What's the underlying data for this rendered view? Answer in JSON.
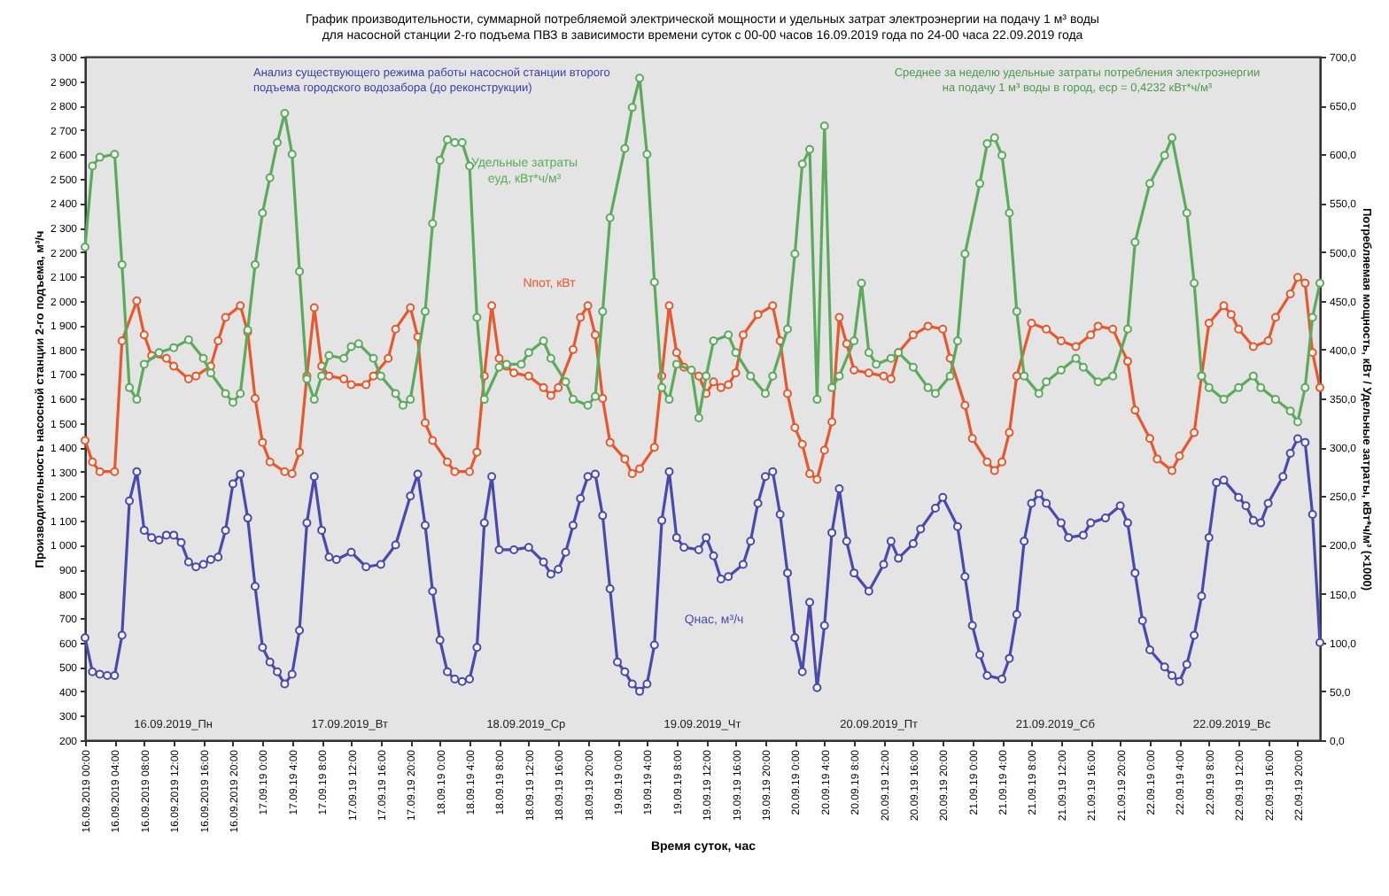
{
  "chart_data": {
    "type": "line",
    "title": "График производительности, суммарной потребляемой электрической мощности и удельных затрат электроэнергии на подачу 1 м³ воды для насосной станции 2-го подъема ПВЗ в зависимости времени суток с 00-00 часов 16.09.2019 года по 24-00 часа 22.09.2019 года",
    "xlabel": "Время суток, час",
    "ylabel": "Производительность насосной станции 2-го подъема, м³/ч",
    "y2label": "Потребляемая мощность, кВт / Удельные затраты, кВт*ч/м³ (×1000)",
    "annotations": [
      "Анализ существующего режима работы насосной станции второго подъема городского водозабора (до реконструкции)",
      "Среднее за неделю удельные затраты потребления электроэнергии на подачу 1 м³ воды в город, eср = 0,4232 кВт*ч/м³",
      "16.09.2019_Пн",
      "17.09.2019_Вт",
      "18.09.2019_Ср",
      "19.09.2019_Чт",
      "20.09.2019_Пт",
      "21.09.2019_Сб",
      "22.09.2019_Вс"
    ],
    "xlim": [
      "2019-09-16T00:00",
      "2019-09-22T23:00"
    ],
    "xticks": [
      {
        "value": "2019-09-16T00:00",
        "label": "16.09.2019 00:00"
      },
      {
        "value": "2019-09-16T04:00",
        "label": "16.09.2019 04:00"
      },
      {
        "value": "2019-09-16T08:00",
        "label": "16.09.2019 08:00"
      },
      {
        "value": "2019-09-16T12:00",
        "label": "16.09.2019 12:00"
      },
      {
        "value": "2019-09-16T16:00",
        "label": "16.09.2019 16:00"
      },
      {
        "value": "2019-09-16T20:00",
        "label": "16.09.2019 20:00"
      },
      {
        "value": "2019-09-17T00:00",
        "label": "17.09.19 0:00"
      },
      {
        "value": "2019-09-17T04:00",
        "label": "17.09.19 4:00"
      },
      {
        "value": "2019-09-17T08:00",
        "label": "17.09.19 8:00"
      },
      {
        "value": "2019-09-17T12:00",
        "label": "17.09.19 12:00"
      },
      {
        "value": "2019-09-17T16:00",
        "label": "17.09.19 16:00"
      },
      {
        "value": "2019-09-17T20:00",
        "label": "17.09.19 20:00"
      },
      {
        "value": "2019-09-18T00:00",
        "label": "18.09.19 0:00"
      },
      {
        "value": "2019-09-18T04:00",
        "label": "18.09.19 4:00"
      },
      {
        "value": "2019-09-18T08:00",
        "label": "18.09.19 8:00"
      },
      {
        "value": "2019-09-18T12:00",
        "label": "18.09.19 12:00"
      },
      {
        "value": "2019-09-18T16:00",
        "label": "18.09.19 16:00"
      },
      {
        "value": "2019-09-18T20:00",
        "label": "18.09.19 20:00"
      },
      {
        "value": "2019-09-19T00:00",
        "label": "19.09.19 0:00"
      },
      {
        "value": "2019-09-19T04:00",
        "label": "19.09.19 4:00"
      },
      {
        "value": "2019-09-19T08:00",
        "label": "19.09.19 8:00"
      },
      {
        "value": "2019-09-19T12:00",
        "label": "19.09.19 12:00"
      },
      {
        "value": "2019-09-19T16:00",
        "label": "19.09.19 16:00"
      },
      {
        "value": "2019-09-19T20:00",
        "label": "19.09.19 20:00"
      },
      {
        "value": "2019-09-20T00:00",
        "label": "20.09.19 0:00"
      },
      {
        "value": "2019-09-20T04:00",
        "label": "20.09.19 4:00"
      },
      {
        "value": "2019-09-20T08:00",
        "label": "20.09.19 8:00"
      },
      {
        "value": "2019-09-20T12:00",
        "label": "20.09.19 12:00"
      },
      {
        "value": "2019-09-20T16:00",
        "label": "20.09.19 16:00"
      },
      {
        "value": "2019-09-20T20:00",
        "label": "20.09.19 20:00"
      },
      {
        "value": "2019-09-21T00:00",
        "label": "21.09.19 0:00"
      },
      {
        "value": "2019-09-21T04:00",
        "label": "21.09.19 4:00"
      },
      {
        "value": "2019-09-21T08:00",
        "label": "21.09.19 8:00"
      },
      {
        "value": "2019-09-21T12:00",
        "label": "21.09.19 12:00"
      },
      {
        "value": "2019-09-21T16:00",
        "label": "21.09.19 16:00"
      },
      {
        "value": "2019-09-21T20:00",
        "label": "21.09.19 20:00"
      },
      {
        "value": "2019-09-22T00:00",
        "label": "22.09.19 0:00"
      },
      {
        "value": "2019-09-22T04:00",
        "label": "22.09.19 4:00"
      },
      {
        "value": "2019-09-22T08:00",
        "label": "22.09.19 8:00"
      },
      {
        "value": "2019-09-22T12:00",
        "label": "22.09.19 12:00"
      },
      {
        "value": "2019-09-22T16:00",
        "label": "22.09.19 16:00"
      },
      {
        "value": "2019-09-22T20:00",
        "label": "22.09.19 20:00"
      }
    ],
    "ylim": [
      200,
      3000
    ],
    "yticks": [
      200,
      300,
      400,
      500,
      600,
      700,
      800,
      900,
      {
        "value": 1000,
        "label": "1 000"
      },
      {
        "value": 1100,
        "label": "1 100"
      },
      {
        "value": 1200,
        "label": "1 200"
      },
      {
        "value": 1300,
        "label": "1 300"
      },
      {
        "value": 1400,
        "label": "1 400"
      },
      {
        "value": 1500,
        "label": "1 500"
      },
      {
        "value": 1600,
        "label": "1 600"
      },
      {
        "value": 1700,
        "label": "1 700"
      },
      {
        "value": 1800,
        "label": "1 800"
      },
      {
        "value": 1900,
        "label": "1 900"
      },
      {
        "value": 2000,
        "label": "2 000"
      },
      {
        "value": 2100,
        "label": "2 100"
      },
      {
        "value": 2200,
        "label": "2 200"
      },
      {
        "value": 2300,
        "label": "2 300"
      },
      {
        "value": 2400,
        "label": "2 400"
      },
      {
        "value": 2500,
        "label": "2 500"
      },
      {
        "value": 2600,
        "label": "2 600"
      },
      {
        "value": 2700,
        "label": "2 700"
      },
      {
        "value": 2800,
        "label": "2 800"
      },
      {
        "value": 2900,
        "label": "2 900"
      },
      {
        "value": 3000,
        "label": "3 000"
      }
    ],
    "y2lim": [
      0,
      700
    ],
    "y2ticks": [
      {
        "value": 0,
        "label": "0,0"
      },
      {
        "value": 50,
        "label": "50,0"
      },
      {
        "value": 100,
        "label": "100,0"
      },
      {
        "value": 150,
        "label": "150,0"
      },
      {
        "value": 200,
        "label": "200,0"
      },
      {
        "value": 250,
        "label": "250,0"
      },
      {
        "value": 300,
        "label": "300,0"
      },
      {
        "value": 350,
        "label": "350,0"
      },
      {
        "value": 400,
        "label": "400,0"
      },
      {
        "value": 450,
        "label": "450,0"
      },
      {
        "value": 500,
        "label": "500,0"
      },
      {
        "value": 550,
        "label": "550,0"
      },
      {
        "value": 600,
        "label": "600,0"
      },
      {
        "value": 650,
        "label": "650,0"
      },
      {
        "value": 700,
        "label": "700,0"
      }
    ],
    "marker": "circle",
    "line_style": "solid",
    "series": [
      {
        "name": "Qнас, м³/ч",
        "color": "#4a4aae",
        "x": [
          "2019-09-16T00:00",
          "2019-09-16T01:00",
          "2019-09-16T02:00",
          "2019-09-16T03:00",
          "2019-09-16T04:00",
          "2019-09-16T05:00",
          "2019-09-16T06:00",
          "2019-09-16T07:00",
          "2019-09-16T08:00",
          "2019-09-16T09:00",
          "2019-09-16T10:00",
          "2019-09-16T11:00",
          "2019-09-16T12:00",
          "2019-09-16T13:00",
          "2019-09-16T14:00",
          "2019-09-16T15:00",
          "2019-09-16T16:00",
          "2019-09-16T17:00",
          "2019-09-16T18:00",
          "2019-09-16T19:00",
          "2019-09-16T20:00",
          "2019-09-16T21:00",
          "2019-09-16T22:00",
          "2019-09-16T23:00",
          "2019-09-17T00:00",
          "2019-09-17T01:00",
          "2019-09-17T02:00",
          "2019-09-17T03:00",
          "2019-09-17T04:00",
          "2019-09-17T05:00",
          "2019-09-17T06:00",
          "2019-09-17T07:00",
          "2019-09-17T08:00",
          "2019-09-17T09:00",
          "2019-09-17T10:00",
          "2019-09-17T12:00",
          "2019-09-17T14:00",
          "2019-09-17T16:00",
          "2019-09-17T18:00",
          "2019-09-17T20:00",
          "2019-09-17T21:00",
          "2019-09-17T22:00",
          "2019-09-17T23:00",
          "2019-09-18T00:00",
          "2019-09-18T01:00",
          "2019-09-18T02:00",
          "2019-09-18T03:00",
          "2019-09-18T04:00",
          "2019-09-18T05:00",
          "2019-09-18T06:00",
          "2019-09-18T07:00",
          "2019-09-18T08:00",
          "2019-09-18T10:00",
          "2019-09-18T12:00",
          "2019-09-18T14:00",
          "2019-09-18T15:00",
          "2019-09-18T16:00",
          "2019-09-18T17:00",
          "2019-09-18T18:00",
          "2019-09-18T19:00",
          "2019-09-18T20:00",
          "2019-09-18T21:00",
          "2019-09-18T22:00",
          "2019-09-18T23:00",
          "2019-09-19T00:00",
          "2019-09-19T01:00",
          "2019-09-19T02:00",
          "2019-09-19T03:00",
          "2019-09-19T04:00",
          "2019-09-19T05:00",
          "2019-09-19T06:00",
          "2019-09-19T07:00",
          "2019-09-19T08:00",
          "2019-09-19T09:00",
          "2019-09-19T11:00",
          "2019-09-19T12:00",
          "2019-09-19T13:00",
          "2019-09-19T14:00",
          "2019-09-19T15:00",
          "2019-09-19T17:00",
          "2019-09-19T18:00",
          "2019-09-19T19:00",
          "2019-09-19T20:00",
          "2019-09-19T21:00",
          "2019-09-19T22:00",
          "2019-09-19T23:00",
          "2019-09-20T00:00",
          "2019-09-20T01:00",
          "2019-09-20T02:00",
          "2019-09-20T03:00",
          "2019-09-20T04:00",
          "2019-09-20T05:00",
          "2019-09-20T06:00",
          "2019-09-20T07:00",
          "2019-09-20T08:00",
          "2019-09-20T10:00",
          "2019-09-20T12:00",
          "2019-09-20T13:00",
          "2019-09-20T14:00",
          "2019-09-20T16:00",
          "2019-09-20T17:00",
          "2019-09-20T19:00",
          "2019-09-20T20:00",
          "2019-09-20T22:00",
          "2019-09-20T23:00",
          "2019-09-21T00:00",
          "2019-09-21T01:00",
          "2019-09-21T02:00",
          "2019-09-21T04:00",
          "2019-09-21T05:00",
          "2019-09-21T06:00",
          "2019-09-21T07:00",
          "2019-09-21T08:00",
          "2019-09-21T09:00",
          "2019-09-21T10:00",
          "2019-09-21T12:00",
          "2019-09-21T13:00",
          "2019-09-21T15:00",
          "2019-09-21T16:00",
          "2019-09-21T18:00",
          "2019-09-21T20:00",
          "2019-09-21T21:00",
          "2019-09-21T22:00",
          "2019-09-21T23:00",
          "2019-09-22T00:00",
          "2019-09-22T02:00",
          "2019-09-22T03:00",
          "2019-09-22T04:00",
          "2019-09-22T05:00",
          "2019-09-22T06:00",
          "2019-09-22T07:00",
          "2019-09-22T08:00",
          "2019-09-22T09:00",
          "2019-09-22T10:00",
          "2019-09-22T12:00",
          "2019-09-22T13:00",
          "2019-09-22T14:00",
          "2019-09-22T15:00",
          "2019-09-22T16:00",
          "2019-09-22T18:00",
          "2019-09-22T19:00",
          "2019-09-22T20:00",
          "2019-09-22T21:00",
          "2019-09-22T22:00",
          "2019-09-22T23:00"
        ],
        "values": [
          620,
          480,
          470,
          465,
          465,
          630,
          1180,
          1300,
          1060,
          1030,
          1020,
          1040,
          1040,
          1010,
          930,
          910,
          920,
          940,
          950,
          1060,
          1250,
          1290,
          1110,
          830,
          580,
          520,
          480,
          430,
          470,
          650,
          1090,
          1280,
          1060,
          950,
          940,
          970,
          910,
          920,
          1000,
          1200,
          1290,
          1080,
          810,
          610,
          480,
          450,
          440,
          450,
          580,
          1090,
          1280,
          980,
          980,
          990,
          930,
          880,
          900,
          970,
          1080,
          1190,
          1280,
          1290,
          1120,
          820,
          520,
          480,
          430,
          400,
          430,
          590,
          1100,
          1300,
          1030,
          990,
          980,
          1030,
          955,
          860,
          870,
          920,
          1015,
          1170,
          1280,
          1300,
          1125,
          885,
          620,
          480,
          765,
          415,
          670,
          1050,
          1230,
          1015,
          885,
          810,
          920,
          1015,
          945,
          1005,
          1065,
          1150,
          1195,
          1075,
          870,
          670,
          550,
          465,
          450,
          535,
          715,
          1015,
          1170,
          1210,
          1170,
          1090,
          1030,
          1040,
          1090,
          1110,
          1160,
          1090,
          885,
          690,
          570,
          500,
          465,
          440,
          510,
          630,
          790,
          1030,
          1255,
          1265,
          1195,
          1160,
          1100,
          1090,
          1170,
          1280,
          1375,
          1435,
          1420,
          1125,
          600
        ]
      },
      {
        "name": "Nпот, кВт",
        "color": "#e8582c",
        "axis": "y2",
        "x": [
          "2019-09-16T00:00",
          "2019-09-16T01:00",
          "2019-09-16T02:00",
          "2019-09-16T04:00",
          "2019-09-16T05:00",
          "2019-09-16T07:00",
          "2019-09-16T08:00",
          "2019-09-16T09:00",
          "2019-09-16T11:00",
          "2019-09-16T12:00",
          "2019-09-16T14:00",
          "2019-09-16T15:00",
          "2019-09-16T17:00",
          "2019-09-16T18:00",
          "2019-09-16T19:00",
          "2019-09-16T21:00",
          "2019-09-16T22:00",
          "2019-09-16T23:00",
          "2019-09-17T00:00",
          "2019-09-17T01:00",
          "2019-09-17T03:00",
          "2019-09-17T04:00",
          "2019-09-17T05:00",
          "2019-09-17T06:00",
          "2019-09-17T07:00",
          "2019-09-17T08:00",
          "2019-09-17T09:00",
          "2019-09-17T11:00",
          "2019-09-17T12:00",
          "2019-09-17T14:00",
          "2019-09-17T15:00",
          "2019-09-17T17:00",
          "2019-09-17T18:00",
          "2019-09-17T20:00",
          "2019-09-17T21:00",
          "2019-09-17T22:00",
          "2019-09-17T23:00",
          "2019-09-18T01:00",
          "2019-09-18T02:00",
          "2019-09-18T04:00",
          "2019-09-18T05:00",
          "2019-09-18T06:00",
          "2019-09-18T07:00",
          "2019-09-18T08:00",
          "2019-09-18T09:00",
          "2019-09-18T10:00",
          "2019-09-18T12:00",
          "2019-09-18T14:00",
          "2019-09-18T15:00",
          "2019-09-18T16:00",
          "2019-09-18T18:00",
          "2019-09-18T19:00",
          "2019-09-18T20:00",
          "2019-09-18T21:00",
          "2019-09-18T22:00",
          "2019-09-18T23:00",
          "2019-09-19T01:00",
          "2019-09-19T02:00",
          "2019-09-19T03:00",
          "2019-09-19T05:00",
          "2019-09-19T06:00",
          "2019-09-19T07:00",
          "2019-09-19T08:00",
          "2019-09-19T09:00",
          "2019-09-19T11:00",
          "2019-09-19T12:00",
          "2019-09-19T13:00",
          "2019-09-19T14:00",
          "2019-09-19T15:00",
          "2019-09-19T16:00",
          "2019-09-19T17:00",
          "2019-09-19T19:00",
          "2019-09-19T21:00",
          "2019-09-19T22:00",
          "2019-09-19T23:00",
          "2019-09-20T00:00",
          "2019-09-20T01:00",
          "2019-09-20T02:00",
          "2019-09-20T03:00",
          "2019-09-20T04:00",
          "2019-09-20T05:00",
          "2019-09-20T06:00",
          "2019-09-20T07:00",
          "2019-09-20T08:00",
          "2019-09-20T10:00",
          "2019-09-20T12:00",
          "2019-09-20T13:00",
          "2019-09-20T14:00",
          "2019-09-20T16:00",
          "2019-09-20T18:00",
          "2019-09-20T20:00",
          "2019-09-20T21:00",
          "2019-09-20T23:00",
          "2019-09-21T00:00",
          "2019-09-21T02:00",
          "2019-09-21T03:00",
          "2019-09-21T04:00",
          "2019-09-21T05:00",
          "2019-09-21T06:00",
          "2019-09-21T08:00",
          "2019-09-21T10:00",
          "2019-09-21T12:00",
          "2019-09-21T14:00",
          "2019-09-21T16:00",
          "2019-09-21T17:00",
          "2019-09-21T19:00",
          "2019-09-21T21:00",
          "2019-09-21T22:00",
          "2019-09-22T00:00",
          "2019-09-22T01:00",
          "2019-09-22T03:00",
          "2019-09-22T04:00",
          "2019-09-22T06:00",
          "2019-09-22T07:00",
          "2019-09-22T08:00",
          "2019-09-22T10:00",
          "2019-09-22T11:00",
          "2019-09-22T12:00",
          "2019-09-22T14:00",
          "2019-09-22T16:00",
          "2019-09-22T17:00",
          "2019-09-22T19:00",
          "2019-09-22T20:00",
          "2019-09-22T21:00",
          "2019-09-22T22:00",
          "2019-09-22T23:00"
        ],
        "values": [
          307,
          285,
          275,
          275,
          409,
          450,
          415,
          394,
          391,
          383,
          370,
          373,
          383,
          409,
          433,
          445,
          418,
          350,
          305,
          285,
          275,
          273,
          295,
          373,
          443,
          383,
          373,
          370,
          364,
          364,
          373,
          391,
          421,
          443,
          413,
          325,
          307,
          285,
          275,
          275,
          295,
          373,
          445,
          391,
          383,
          376,
          373,
          361,
          353,
          361,
          400,
          433,
          445,
          415,
          350,
          305,
          288,
          273,
          278,
          300,
          373,
          445,
          397,
          382,
          373,
          355,
          367,
          361,
          364,
          376,
          415,
          436,
          445,
          409,
          355,
          320,
          303,
          273,
          267,
          297,
          326,
          433,
          406,
          379,
          376,
          373,
          370,
          397,
          415,
          424,
          421,
          391,
          343,
          309,
          285,
          276,
          285,
          315,
          373,
          427,
          421,
          409,
          403,
          415,
          424,
          421,
          388,
          338,
          309,
          288,
          276,
          291,
          315,
          373,
          427,
          445,
          436,
          421,
          403,
          409,
          433,
          457,
          474,
          468,
          397,
          361
        ]
      },
      {
        "name": "Удельные затраты eуд, кВт*ч/м³",
        "color": "#5cab5c",
        "axis": "y2",
        "x": [
          "2019-09-16T00:00",
          "2019-09-16T01:00",
          "2019-09-16T02:00",
          "2019-09-16T04:00",
          "2019-09-16T05:00",
          "2019-09-16T06:00",
          "2019-09-16T07:00",
          "2019-09-16T08:00",
          "2019-09-16T10:00",
          "2019-09-16T12:00",
          "2019-09-16T14:00",
          "2019-09-16T16:00",
          "2019-09-16T17:00",
          "2019-09-16T19:00",
          "2019-09-16T20:00",
          "2019-09-16T21:00",
          "2019-09-16T22:00",
          "2019-09-16T23:00",
          "2019-09-17T00:00",
          "2019-09-17T01:00",
          "2019-09-17T02:00",
          "2019-09-17T03:00",
          "2019-09-17T04:00",
          "2019-09-17T05:00",
          "2019-09-17T06:00",
          "2019-09-17T07:00",
          "2019-09-17T08:00",
          "2019-09-17T09:00",
          "2019-09-17T11:00",
          "2019-09-17T12:00",
          "2019-09-17T13:00",
          "2019-09-17T15:00",
          "2019-09-17T16:00",
          "2019-09-17T18:00",
          "2019-09-17T19:00",
          "2019-09-17T20:00",
          "2019-09-17T22:00",
          "2019-09-17T23:00",
          "2019-09-18T00:00",
          "2019-09-18T01:00",
          "2019-09-18T02:00",
          "2019-09-18T03:00",
          "2019-09-18T04:00",
          "2019-09-18T05:00",
          "2019-09-18T06:00",
          "2019-09-18T08:00",
          "2019-09-18T09:00",
          "2019-09-18T11:00",
          "2019-09-18T12:00",
          "2019-09-18T14:00",
          "2019-09-18T15:00",
          "2019-09-18T17:00",
          "2019-09-18T18:00",
          "2019-09-18T20:00",
          "2019-09-18T21:00",
          "2019-09-18T22:00",
          "2019-09-18T23:00",
          "2019-09-19T01:00",
          "2019-09-19T02:00",
          "2019-09-19T03:00",
          "2019-09-19T04:00",
          "2019-09-19T05:00",
          "2019-09-19T06:00",
          "2019-09-19T07:00",
          "2019-09-19T08:00",
          "2019-09-19T10:00",
          "2019-09-19T11:00",
          "2019-09-19T12:00",
          "2019-09-19T13:00",
          "2019-09-19T15:00",
          "2019-09-19T16:00",
          "2019-09-19T18:00",
          "2019-09-19T20:00",
          "2019-09-19T21:00",
          "2019-09-19T23:00",
          "2019-09-20T00:00",
          "2019-09-20T01:00",
          "2019-09-20T02:00",
          "2019-09-20T03:00",
          "2019-09-20T04:00",
          "2019-09-20T05:00",
          "2019-09-20T06:00",
          "2019-09-20T08:00",
          "2019-09-20T09:00",
          "2019-09-20T10:00",
          "2019-09-20T11:00",
          "2019-09-20T13:00",
          "2019-09-20T14:00",
          "2019-09-20T16:00",
          "2019-09-20T18:00",
          "2019-09-20T19:00",
          "2019-09-20T21:00",
          "2019-09-20T22:00",
          "2019-09-20T23:00",
          "2019-09-21T01:00",
          "2019-09-21T02:00",
          "2019-09-21T03:00",
          "2019-09-21T04:00",
          "2019-09-21T05:00",
          "2019-09-21T06:00",
          "2019-09-21T07:00",
          "2019-09-21T09:00",
          "2019-09-21T10:00",
          "2019-09-21T12:00",
          "2019-09-21T14:00",
          "2019-09-21T15:00",
          "2019-09-21T17:00",
          "2019-09-21T19:00",
          "2019-09-21T21:00",
          "2019-09-21T22:00",
          "2019-09-22T00:00",
          "2019-09-22T02:00",
          "2019-09-22T03:00",
          "2019-09-22T05:00",
          "2019-09-22T06:00",
          "2019-09-22T07:00",
          "2019-09-22T08:00",
          "2019-09-22T10:00",
          "2019-09-22T12:00",
          "2019-09-22T14:00",
          "2019-09-22T15:00",
          "2019-09-22T17:00",
          "2019-09-22T19:00",
          "2019-09-22T20:00",
          "2019-09-22T21:00",
          "2019-09-22T22:00",
          "2019-09-22T23:00"
        ],
        "values": [
          505,
          588,
          597,
          600,
          487,
          361,
          349,
          385,
          397,
          402,
          410,
          391,
          376,
          355,
          346,
          355,
          420,
          487,
          540,
          576,
          612,
          642,
          600,
          480,
          370,
          349,
          373,
          394,
          391,
          403,
          406,
          391,
          373,
          355,
          343,
          349,
          439,
          529,
          594,
          615,
          612,
          612,
          588,
          433,
          349,
          382,
          385,
          385,
          397,
          409,
          391,
          367,
          349,
          343,
          352,
          439,
          535,
          606,
          648,
          678,
          600,
          469,
          361,
          349,
          385,
          379,
          330,
          373,
          409,
          415,
          397,
          373,
          355,
          373,
          421,
          498,
          590,
          605,
          349,
          629,
          361,
          373,
          409,
          468,
          397,
          385,
          391,
          397,
          382,
          361,
          355,
          373,
          409,
          498,
          570,
          611,
          617,
          599,
          540,
          439,
          373,
          355,
          367,
          379,
          391,
          382,
          367,
          373,
          421,
          510,
          570,
          599,
          617,
          540,
          468,
          373,
          361,
          349,
          361,
          373,
          361,
          349,
          337,
          326,
          361,
          433,
          468
        ]
      }
    ]
  }
}
